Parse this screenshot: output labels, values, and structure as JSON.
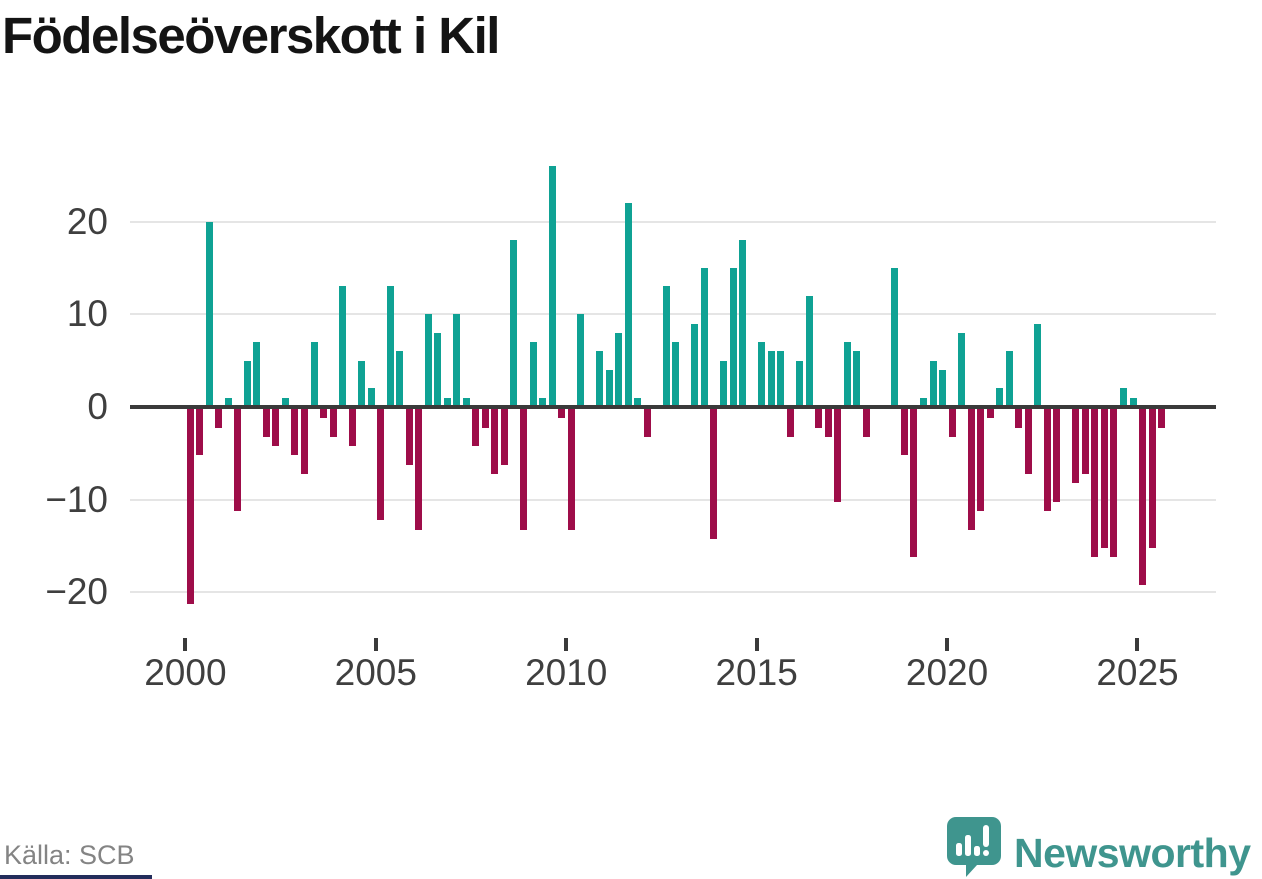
{
  "title": "Födelseöverskott i Kil",
  "source_caption": "Källa: SCB",
  "branding": {
    "name": "Newsworthy",
    "icon": "newsworthy-speech-bubble-chart-icon"
  },
  "colors": {
    "positive_bar": "#0fa294",
    "negative_bar": "#9e0d49",
    "gridline": "#e5e5e5",
    "zero_axis": "#3a3a3a",
    "axis_label": "#3f3f3f",
    "title_text": "#141414",
    "source_text": "#848484",
    "logo_teal": "#3f958e",
    "bottom_accent": "#232d5b",
    "background": "#ffffff"
  },
  "chart_data": {
    "type": "bar",
    "series_name": "Födelseöverskott per kvartal",
    "frequency": "quarterly",
    "start_period": "2000Q1",
    "end_period": "2025Q3",
    "values_by_year": {
      "2000": [
        -21,
        -5,
        20,
        -2
      ],
      "2001": [
        1,
        -11,
        5,
        7
      ],
      "2002": [
        -3,
        -4,
        1,
        -5
      ],
      "2003": [
        -7,
        7,
        -1,
        -3
      ],
      "2004": [
        13,
        -4,
        5,
        2
      ],
      "2005": [
        -12,
        13,
        6,
        -6
      ],
      "2006": [
        -13,
        10,
        8,
        1
      ],
      "2007": [
        10,
        1,
        -4,
        -2
      ],
      "2008": [
        -7,
        -6,
        18,
        -13
      ],
      "2009": [
        7,
        1,
        26,
        -1
      ],
      "2010": [
        -13,
        10,
        0,
        6
      ],
      "2011": [
        4,
        8,
        22,
        1
      ],
      "2012": [
        -3,
        0,
        13,
        7
      ],
      "2013": [
        0,
        9,
        15,
        -14
      ],
      "2014": [
        5,
        15,
        18,
        0
      ],
      "2015": [
        7,
        6,
        6,
        -3
      ],
      "2016": [
        5,
        12,
        -2,
        -3
      ],
      "2017": [
        -10,
        7,
        6,
        -3
      ],
      "2018": [
        0,
        0,
        15,
        -5
      ],
      "2019": [
        -16,
        1,
        5,
        4
      ],
      "2020": [
        -3,
        8,
        -13,
        -11
      ],
      "2021": [
        -1,
        2,
        6,
        -2
      ],
      "2022": [
        -7,
        9,
        -11,
        -10
      ],
      "2023": [
        0,
        -8,
        -7,
        -16
      ],
      "2024": [
        -15,
        -16,
        2,
        1
      ],
      "2025": [
        -19,
        -15,
        -2
      ]
    },
    "y_ticks": [
      {
        "value": 20,
        "label": "20"
      },
      {
        "value": 10,
        "label": "10"
      },
      {
        "value": 0,
        "label": "0"
      },
      {
        "value": -10,
        "label": "−10"
      },
      {
        "value": -20,
        "label": "−20"
      }
    ],
    "x_ticks": [
      {
        "year": 2000,
        "label": "2000"
      },
      {
        "year": 2005,
        "label": "2005"
      },
      {
        "year": 2010,
        "label": "2010"
      },
      {
        "year": 2015,
        "label": "2015"
      },
      {
        "year": 2020,
        "label": "2020"
      },
      {
        "year": 2025,
        "label": "2025"
      }
    ],
    "ylim": [
      -23,
      28
    ],
    "grid": true,
    "legend": false
  }
}
